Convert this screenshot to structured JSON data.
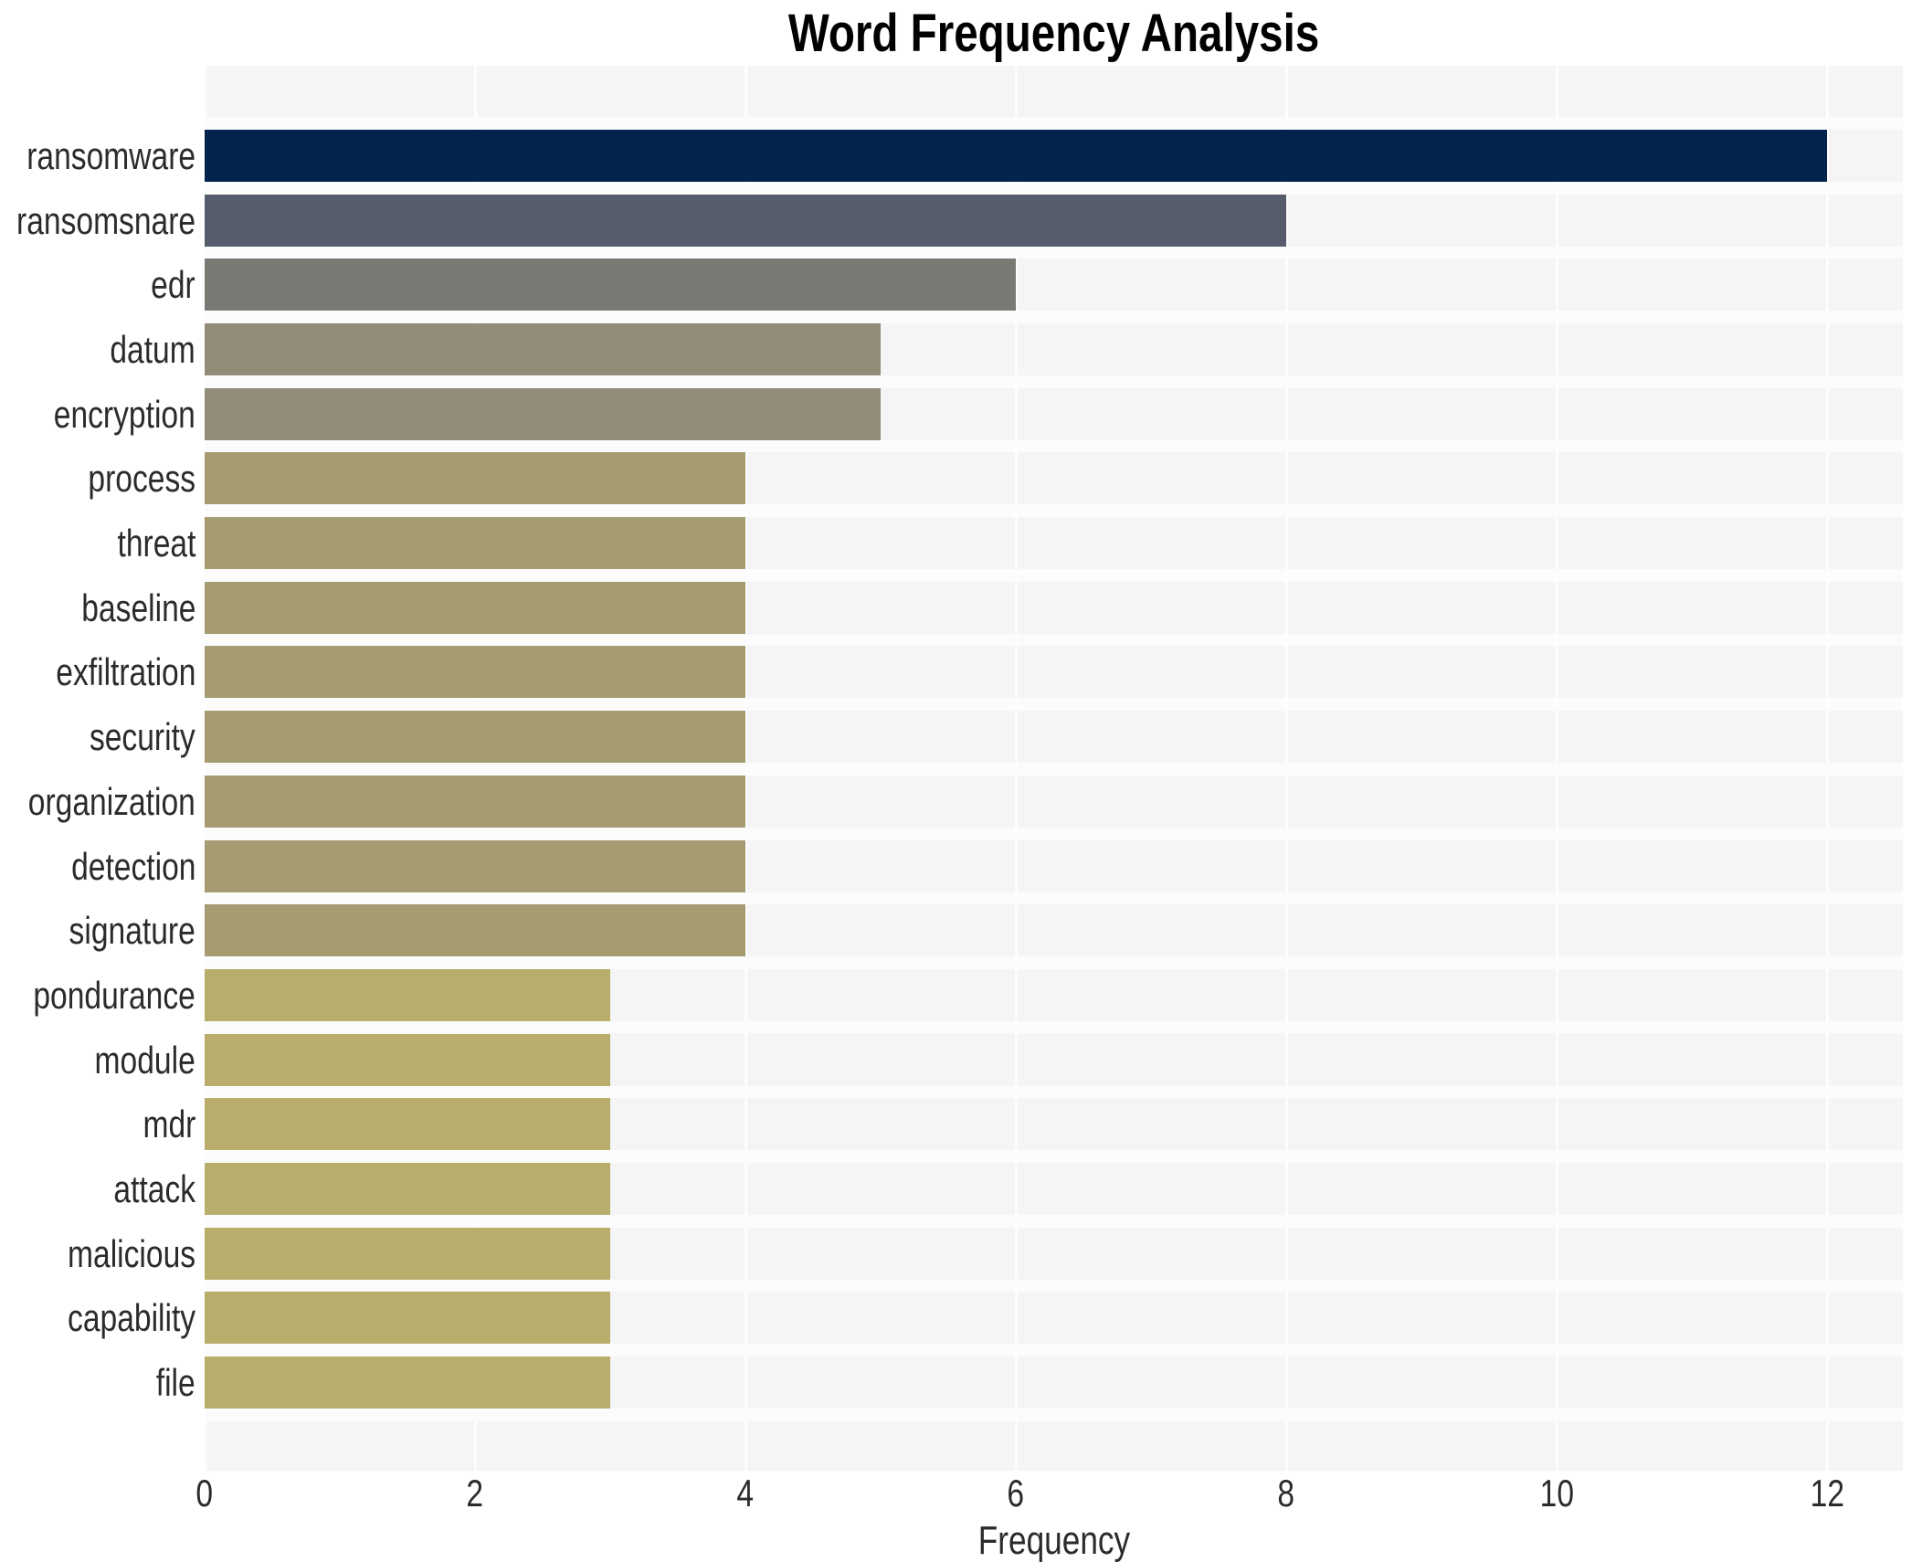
{
  "chart_data": {
    "type": "bar",
    "orientation": "horizontal",
    "title": "Word Frequency Analysis",
    "xlabel": "Frequency",
    "ylabel": "",
    "categories": [
      "ransomware",
      "ransomsnare",
      "edr",
      "datum",
      "encryption",
      "process",
      "threat",
      "baseline",
      "exfiltration",
      "security",
      "organization",
      "detection",
      "signature",
      "pondurance",
      "module",
      "mdr",
      "attack",
      "malicious",
      "capability",
      "file"
    ],
    "values": [
      12,
      8,
      6,
      5,
      5,
      4,
      4,
      4,
      4,
      4,
      4,
      4,
      4,
      3,
      3,
      3,
      3,
      3,
      3,
      3
    ],
    "bar_colors": [
      "#03234d",
      "#565c6c",
      "#7a7973",
      "#928c79",
      "#928c79",
      "#a59c72",
      "#a59c72",
      "#a59c72",
      "#a59c72",
      "#a59c72",
      "#a59c72",
      "#a59c72",
      "#a59c72",
      "#b8ad6b",
      "#b8ad6b",
      "#b8ad6b",
      "#b8ad6b",
      "#b8ad6b",
      "#b8ad6b",
      "#b8ad6b"
    ],
    "xticks": [
      0,
      2,
      4,
      6,
      8,
      10,
      12
    ],
    "xlim": [
      0,
      12.57
    ],
    "grid": true,
    "grid_axis": "x",
    "legend": false,
    "plot_background": "#f5f5f7",
    "gridline_color": "#fdfdfe",
    "title_color": "#000000",
    "tick_label_color": "#2b2b2b"
  }
}
